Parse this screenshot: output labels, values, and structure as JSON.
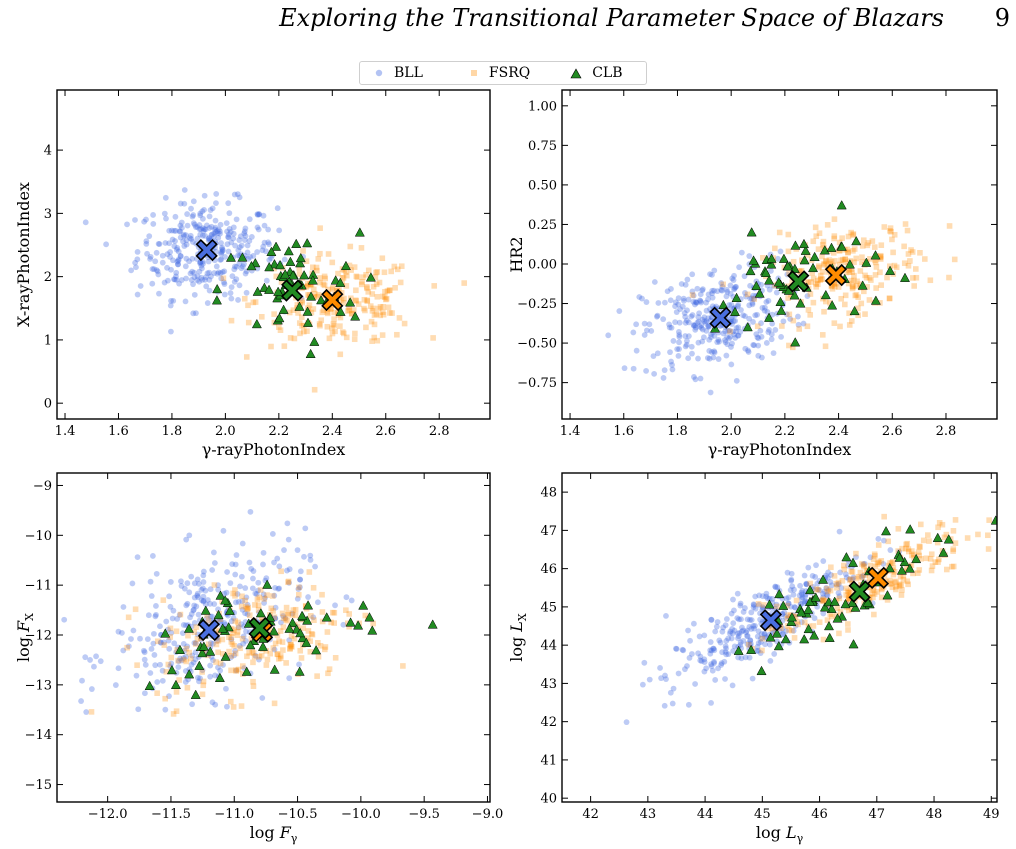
{
  "header": {
    "title": "Exploring the Transitional Parameter Space of Blazars",
    "page_number": "9"
  },
  "legend": [
    {
      "label": "BLL",
      "color": "#4169e1",
      "marker": "circle"
    },
    {
      "label": "FSRQ",
      "color": "#ff8c00",
      "marker": "square"
    },
    {
      "label": "CLB",
      "color": "#228b22",
      "marker": "triangle"
    }
  ],
  "chart_data": [
    {
      "type": "scatter",
      "title": "",
      "xlabel": "γ-ray Photon Index",
      "ylabel": "X-ray Photon Index",
      "xlim": [
        1.37,
        2.99
      ],
      "ylim": [
        -0.25,
        4.95
      ],
      "xticks": [
        1.4,
        1.6,
        1.8,
        2.0,
        2.2,
        2.4,
        2.6,
        2.8
      ],
      "xtick_labels": [
        "1.4",
        "1.6",
        "1.8",
        "2.0",
        "2.2",
        "2.4",
        "2.6",
        "2.8"
      ],
      "yticks": [
        0,
        1,
        2,
        3,
        4
      ],
      "ytick_labels": [
        "0",
        "1",
        "2",
        "3",
        "4"
      ],
      "series": [
        {
          "name": "BLL",
          "center": [
            1.93,
            2.42
          ],
          "spread": [
            0.13,
            0.38
          ],
          "n": 330
        },
        {
          "name": "FSRQ",
          "center": [
            2.42,
            1.62
          ],
          "spread": [
            0.15,
            0.35
          ],
          "n": 230
        },
        {
          "name": "CLB",
          "center": [
            2.24,
            1.78
          ],
          "spread": [
            0.13,
            0.45
          ],
          "n": 60
        }
      ],
      "means": [
        {
          "name": "BLL",
          "x": 1.93,
          "y": 2.42
        },
        {
          "name": "FSRQ",
          "x": 2.4,
          "y": 1.63
        },
        {
          "name": "CLB",
          "x": 2.25,
          "y": 1.78
        }
      ]
    },
    {
      "type": "scatter",
      "title": "",
      "xlabel": "γ-ray Photon Index",
      "ylabel": "HR2",
      "xlim": [
        1.37,
        2.99
      ],
      "ylim": [
        -0.98,
        1.1
      ],
      "xticks": [
        1.4,
        1.6,
        1.8,
        2.0,
        2.2,
        2.4,
        2.6,
        2.8
      ],
      "xtick_labels": [
        "1.4",
        "1.6",
        "1.8",
        "2.0",
        "2.2",
        "2.4",
        "2.6",
        "2.8"
      ],
      "yticks": [
        -0.75,
        -0.5,
        -0.25,
        0.0,
        0.25,
        0.5,
        0.75,
        1.0
      ],
      "ytick_labels": [
        "−0.75",
        "−0.50",
        "−0.25",
        "0.00",
        "0.25",
        "0.50",
        "0.75",
        "1.00"
      ],
      "series": [
        {
          "name": "BLL",
          "center": [
            1.95,
            -0.34
          ],
          "spread": [
            0.14,
            0.17
          ],
          "n": 330
        },
        {
          "name": "FSRQ",
          "center": [
            2.42,
            -0.05
          ],
          "spread": [
            0.15,
            0.15
          ],
          "n": 230
        },
        {
          "name": "CLB",
          "center": [
            2.24,
            -0.11
          ],
          "spread": [
            0.15,
            0.17
          ],
          "n": 60
        }
      ],
      "means": [
        {
          "name": "BLL",
          "x": 1.96,
          "y": -0.34
        },
        {
          "name": "FSRQ",
          "x": 2.39,
          "y": -0.07
        },
        {
          "name": "CLB",
          "x": 2.25,
          "y": -0.11
        }
      ]
    },
    {
      "type": "scatter",
      "title": "",
      "xlabel": "log Fγ",
      "ylabel": "log FX",
      "xlim": [
        -12.4,
        -8.98
      ],
      "ylim": [
        -15.35,
        -8.75
      ],
      "xticks": [
        -12.0,
        -11.5,
        -11.0,
        -10.5,
        -10.0,
        -9.5,
        -9.0
      ],
      "xtick_labels": [
        "−12.0",
        "−11.5",
        "−11.0",
        "−10.5",
        "−10.0",
        "−9.5",
        "−9.0"
      ],
      "yticks": [
        -15,
        -14,
        -13,
        -12,
        -11,
        -10,
        -9
      ],
      "ytick_labels": [
        "−15",
        "−14",
        "−13",
        "−12",
        "−11",
        "−10",
        "−9"
      ],
      "series": [
        {
          "name": "BLL",
          "center": [
            -11.2,
            -11.8
          ],
          "spread": [
            0.38,
            0.75
          ],
          "n": 330
        },
        {
          "name": "FSRQ",
          "center": [
            -10.8,
            -12.0
          ],
          "spread": [
            0.4,
            0.6
          ],
          "n": 230
        },
        {
          "name": "CLB",
          "center": [
            -10.8,
            -11.9
          ],
          "spread": [
            0.5,
            0.55
          ],
          "n": 60
        }
      ],
      "means": [
        {
          "name": "BLL",
          "x": -11.2,
          "y": -11.9
        },
        {
          "name": "FSRQ",
          "x": -10.78,
          "y": -11.93
        },
        {
          "name": "CLB",
          "x": -10.8,
          "y": -11.86
        }
      ]
    },
    {
      "type": "scatter",
      "title": "",
      "xlabel": "log Lγ",
      "ylabel": "log LX",
      "xlim": [
        41.5,
        49.1
      ],
      "ylim": [
        39.9,
        48.5
      ],
      "xticks": [
        42,
        43,
        44,
        45,
        46,
        47,
        48,
        49
      ],
      "xtick_labels": [
        "42",
        "43",
        "44",
        "45",
        "46",
        "47",
        "48",
        "49"
      ],
      "yticks": [
        40,
        41,
        42,
        43,
        44,
        45,
        46,
        47,
        48
      ],
      "ytick_labels": [
        "40",
        "41",
        "42",
        "43",
        "44",
        "45",
        "46",
        "47",
        "48"
      ],
      "series": [
        {
          "name": "BLL",
          "center": [
            45.0,
            44.6
          ],
          "spread": [
            0.85,
            0.85
          ],
          "n": 330
        },
        {
          "name": "FSRQ",
          "center": [
            46.8,
            45.6
          ],
          "spread": [
            0.9,
            0.8
          ],
          "n": 230
        },
        {
          "name": "CLB",
          "center": [
            46.5,
            45.4
          ],
          "spread": [
            1.0,
            0.9
          ],
          "n": 60
        }
      ],
      "means": [
        {
          "name": "BLL",
          "x": 45.15,
          "y": 44.65
        },
        {
          "name": "FSRQ",
          "x": 47.02,
          "y": 45.76
        },
        {
          "name": "CLB",
          "x": 46.7,
          "y": 45.4
        }
      ]
    }
  ]
}
